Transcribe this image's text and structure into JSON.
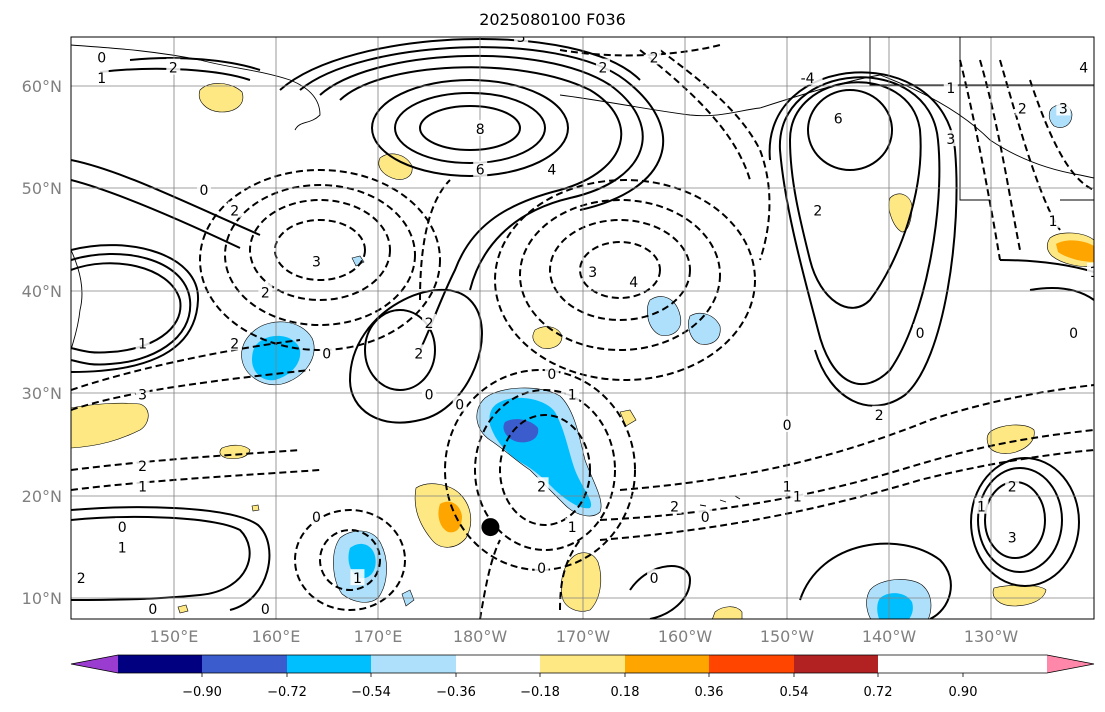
{
  "title": "2025080100 F036",
  "map": {
    "projection": "equirectangular",
    "lon_range": [
      "140°E",
      "120°W"
    ],
    "lat_range": [
      "8°N",
      "65°N"
    ],
    "grid": true,
    "lat_ticks": [
      "60°N",
      "50°N",
      "40°N",
      "30°N",
      "20°N",
      "10°N"
    ],
    "lon_ticks": [
      "150°E",
      "160°E",
      "170°E",
      "180°W",
      "170°W",
      "160°W",
      "150°W",
      "140°W",
      "130°W"
    ],
    "contour_line_color": "#000000",
    "negative_contour_style": "dashed",
    "positive_contour_style": "solid",
    "marker": {
      "shape": "filled-circle",
      "color": "#000000",
      "lon": "179°W",
      "lat": "17°N"
    },
    "contour_labels": [
      {
        "text": "8",
        "lon": "180°",
        "lat": "56°N"
      },
      {
        "text": "6",
        "lon": "180°",
        "lat": "52°N"
      },
      {
        "text": "4",
        "lon": "173°W",
        "lat": "52°N"
      },
      {
        "text": "2",
        "lon": "150°E",
        "lat": "62°N"
      },
      {
        "text": "1",
        "lon": "143°E",
        "lat": "61°N"
      },
      {
        "text": "0",
        "lon": "143°E",
        "lat": "63°N"
      },
      {
        "text": "3",
        "lon": "176°W",
        "lat": "65°N"
      },
      {
        "text": "2",
        "lon": "168°W",
        "lat": "62°N"
      },
      {
        "text": "2",
        "lon": "163°W",
        "lat": "63°N"
      },
      {
        "text": "-4",
        "lon": "148°W",
        "lat": "61°N"
      },
      {
        "text": "6",
        "lon": "145°W",
        "lat": "57°N"
      },
      {
        "text": "3",
        "lon": "134°W",
        "lat": "55°N"
      },
      {
        "text": "1",
        "lon": "134°W",
        "lat": "60°N"
      },
      {
        "text": "2",
        "lon": "127°W",
        "lat": "58°N"
      },
      {
        "text": "3",
        "lon": "123°W",
        "lat": "58°N"
      },
      {
        "text": "4",
        "lon": "121°W",
        "lat": "62°N"
      },
      {
        "text": "2",
        "lon": "156°E",
        "lat": "48°N"
      },
      {
        "text": "0",
        "lon": "153°E",
        "lat": "50°N"
      },
      {
        "text": "3",
        "lon": "164°E",
        "lat": "43°N"
      },
      {
        "text": "2",
        "lon": "159°E",
        "lat": "40°N"
      },
      {
        "text": "2",
        "lon": "156°E",
        "lat": "35°N"
      },
      {
        "text": "1",
        "lon": "147°E",
        "lat": "35°N"
      },
      {
        "text": "3",
        "lon": "147°E",
        "lat": "30°N"
      },
      {
        "text": "0",
        "lon": "165°E",
        "lat": "34°N"
      },
      {
        "text": "2",
        "lon": "175°E",
        "lat": "37°N"
      },
      {
        "text": "2",
        "lon": "174°E",
        "lat": "34°N"
      },
      {
        "text": "0",
        "lon": "175°E",
        "lat": "30°N"
      },
      {
        "text": "0",
        "lon": "178°E",
        "lat": "29°N"
      },
      {
        "text": "3",
        "lon": "169°W",
        "lat": "42°N"
      },
      {
        "text": "4",
        "lon": "165°W",
        "lat": "41°N"
      },
      {
        "text": "0",
        "lon": "173°W",
        "lat": "32°N"
      },
      {
        "text": "1",
        "lon": "171°W",
        "lat": "30°N"
      },
      {
        "text": "2",
        "lon": "147°W",
        "lat": "48°N"
      },
      {
        "text": "0",
        "lon": "137°W",
        "lat": "36°N"
      },
      {
        "text": "0",
        "lon": "150°W",
        "lat": "27°N"
      },
      {
        "text": "2",
        "lon": "141°W",
        "lat": "28°N"
      },
      {
        "text": "1",
        "lon": "124°W",
        "lat": "47°N"
      },
      {
        "text": "1",
        "lon": "120°W",
        "lat": "42°N"
      },
      {
        "text": "0",
        "lon": "122°W",
        "lat": "36°N"
      },
      {
        "text": "2",
        "lon": "128°W",
        "lat": "21°N"
      },
      {
        "text": "3",
        "lon": "128°W",
        "lat": "16°N"
      },
      {
        "text": "1",
        "lon": "131°W",
        "lat": "19°N"
      },
      {
        "text": "1",
        "lon": "149°W",
        "lat": "20°N"
      },
      {
        "text": "0",
        "lon": "158°W",
        "lat": "18°N"
      },
      {
        "text": "1",
        "lon": "150°W",
        "lat": "21°N"
      },
      {
        "text": "2",
        "lon": "147°E",
        "lat": "23°N"
      },
      {
        "text": "1",
        "lon": "147°E",
        "lat": "21°N"
      },
      {
        "text": "0",
        "lon": "145°E",
        "lat": "17°N"
      },
      {
        "text": "1",
        "lon": "145°E",
        "lat": "15°N"
      },
      {
        "text": "2",
        "lon": "141°E",
        "lat": "12°N"
      },
      {
        "text": "0",
        "lon": "148°E",
        "lat": "9°N"
      },
      {
        "text": "0",
        "lon": "159°E",
        "lat": "9°N"
      },
      {
        "text": "0",
        "lon": "164°E",
        "lat": "18°N"
      },
      {
        "text": "1",
        "lon": "168°E",
        "lat": "12°N"
      },
      {
        "text": "2",
        "lon": "174°W",
        "lat": "21°N"
      },
      {
        "text": "1",
        "lon": "171°W",
        "lat": "17°N"
      },
      {
        "text": "0",
        "lon": "174°W",
        "lat": "13°N"
      },
      {
        "text": "0",
        "lon": "163°W",
        "lat": "12°N"
      },
      {
        "text": "2",
        "lon": "161°W",
        "lat": "19°N"
      }
    ]
  },
  "colorbar": {
    "labels": [
      "−0.90",
      "−0.72",
      "−0.54",
      "−0.36",
      "−0.18",
      "0.18",
      "0.36",
      "0.54",
      "0.72",
      "0.90"
    ],
    "colors": [
      "#9a3ccf",
      "#000080",
      "#3a5ccc",
      "#00bfff",
      "#aee0fb",
      "#ffffff",
      "#fde883",
      "#ffa500",
      "#ff4500",
      "#b22222",
      "#ff88aa"
    ],
    "extend": "both"
  }
}
